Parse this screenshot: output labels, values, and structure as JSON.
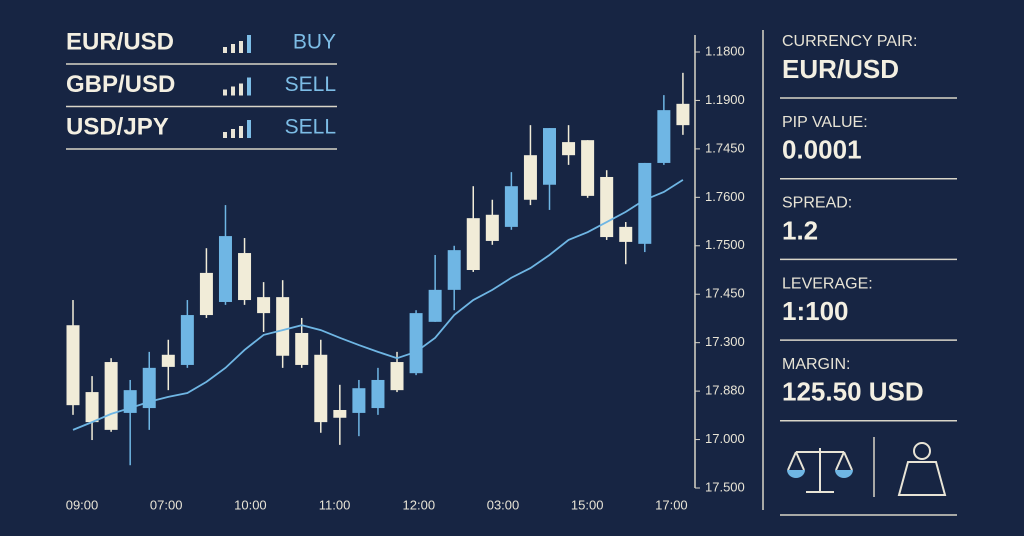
{
  "pairs": [
    {
      "pair": "EUR/USD",
      "signal": "BUY"
    },
    {
      "pair": "GBP/USD",
      "signal": "SELL"
    },
    {
      "pair": "USD/JPY",
      "signal": "SELL"
    }
  ],
  "panel": [
    {
      "label": "CURRENCY PAIR:",
      "value": "EUR/USD"
    },
    {
      "label": "PIP VALUE:",
      "value": "0.0001"
    },
    {
      "label": "SPREAD:",
      "value": "1.2"
    },
    {
      "label": "LEVERAGE:",
      "value": "1:100"
    },
    {
      "label": "MARGIN:",
      "value": "125.50 USD"
    }
  ],
  "chart_data": {
    "type": "candlestick",
    "up_color": "#6fb6e4",
    "down_color": "#f1ecd8",
    "line_color": "#6fb6e4",
    "ylim": [
      0,
      9
    ],
    "yticks": [
      {
        "value": 9,
        "label": "1.1800"
      },
      {
        "value": 8,
        "label": "1.1900"
      },
      {
        "value": 7,
        "label": "1.7450"
      },
      {
        "value": 6,
        "label": "1.7600"
      },
      {
        "value": 5,
        "label": "1.7500"
      },
      {
        "value": 4,
        "label": "17.450"
      },
      {
        "value": 3,
        "label": "17.300"
      },
      {
        "value": 2,
        "label": "17.880"
      },
      {
        "value": 1,
        "label": "17.000"
      },
      {
        "value": 0,
        "label": "17.500"
      }
    ],
    "time_labels": [
      "09:00",
      "07:00",
      "10:00",
      "11:00",
      "12:00",
      "03:00",
      "15:00",
      "17:00"
    ],
    "open": [
      3.36,
      1.98,
      2.6,
      1.55,
      1.65,
      2.75,
      2.54,
      4.44,
      3.84,
      4.85,
      3.94,
      3.94,
      3.2,
      2.75,
      1.61,
      1.55,
      1.65,
      2.6,
      2.37,
      3.43,
      4.09,
      5.57,
      5.64,
      5.39,
      6.87,
      6.26,
      7.14,
      7.18,
      6.42,
      5.39,
      5.04,
      6.71,
      7.93
    ],
    "high": [
      3.88,
      2.31,
      2.68,
      2.23,
      2.81,
      3.06,
      3.88,
      4.95,
      5.84,
      5.16,
      4.25,
      4.29,
      3.51,
      3.06,
      2.13,
      2.23,
      2.48,
      2.81,
      3.67,
      4.81,
      5.0,
      6.23,
      5.95,
      6.52,
      7.49,
      7.43,
      7.49,
      7.18,
      6.56,
      5.49,
      6.71,
      8.11,
      8.57
    ],
    "low": [
      1.51,
      0.99,
      1.16,
      0.47,
      1.2,
      2.02,
      2.48,
      3.51,
      3.78,
      3.78,
      3.22,
      2.48,
      2.48,
      1.14,
      0.89,
      1.07,
      1.51,
      1.98,
      2.33,
      3.43,
      3.67,
      4.46,
      5.02,
      5.33,
      5.84,
      5.74,
      6.67,
      5.99,
      5.12,
      4.62,
      4.87,
      6.67,
      7.29
    ],
    "close": [
      1.71,
      1.36,
      1.2,
      2.02,
      2.48,
      2.5,
      3.57,
      3.57,
      5.2,
      3.88,
      3.61,
      2.73,
      2.54,
      1.36,
      1.45,
      2.06,
      2.23,
      2.02,
      3.61,
      4.09,
      4.91,
      4.5,
      5.1,
      6.23,
      5.95,
      7.43,
      6.87,
      6.03,
      5.18,
      5.08,
      6.71,
      7.8,
      7.49
    ],
    "average": [
      1.2,
      1.36,
      1.53,
      1.65,
      1.78,
      1.88,
      1.96,
      2.19,
      2.48,
      2.85,
      3.16,
      3.26,
      3.36,
      3.26,
      3.1,
      2.95,
      2.81,
      2.68,
      2.81,
      3.1,
      3.57,
      3.88,
      4.09,
      4.34,
      4.54,
      4.81,
      5.12,
      5.28,
      5.49,
      5.7,
      5.95,
      6.11,
      6.36
    ]
  }
}
